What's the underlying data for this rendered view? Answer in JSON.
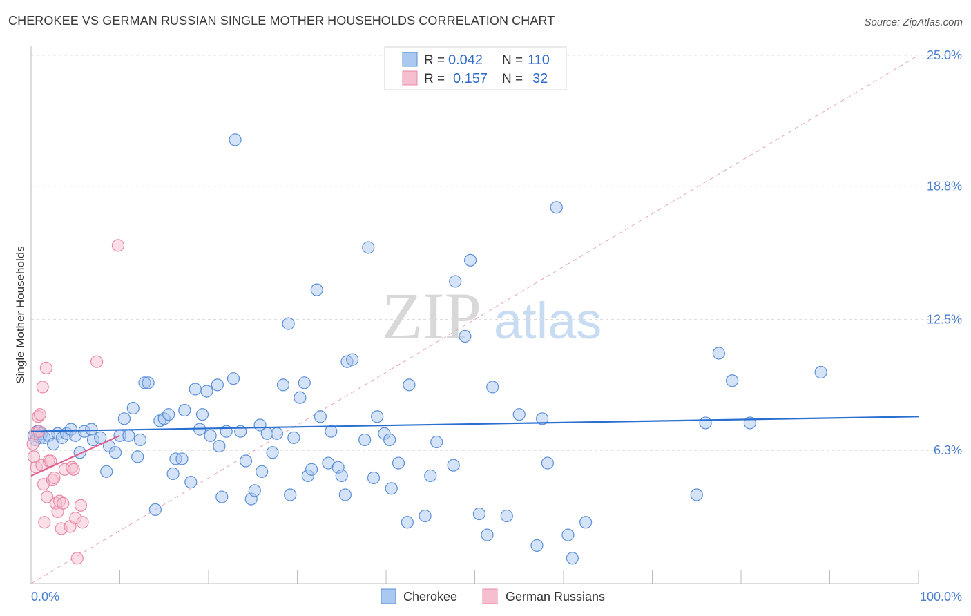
{
  "title": "CHEROKEE VS GERMAN RUSSIAN SINGLE MOTHER HOUSEHOLDS CORRELATION CHART",
  "source": "Source: ZipAtlas.com",
  "watermark": {
    "zip": "ZIP",
    "atlas": "atlas"
  },
  "colors": {
    "blue_fill": "#aac8f0",
    "blue_stroke": "#5b8fd8",
    "blue_line": "#2a6fd0",
    "pink_fill": "#f6bfd0",
    "pink_stroke": "#e889a8",
    "pink_line": "#e0608e",
    "grid": "#dcdcdc",
    "tick_text": "#4a7fd0"
  },
  "legend": {
    "rows": [
      {
        "r_label": "R =",
        "r_value": "0.042",
        "n_label": "N =",
        "n_value": "110",
        "series": "Cherokee"
      },
      {
        "r_label": "R =",
        "r_value": "0.157",
        "n_label": "N =",
        "n_value": "32",
        "series": "German Russians"
      }
    ]
  },
  "chart_data": {
    "type": "scatter",
    "title": "CHEROKEE VS GERMAN RUSSIAN SINGLE MOTHER HOUSEHOLDS CORRELATION CHART",
    "xlabel": "",
    "ylabel": "Single Mother Households",
    "xlim": [
      0,
      100
    ],
    "ylim": [
      0,
      25
    ],
    "x_tick_labels": [
      "0.0%",
      "100.0%"
    ],
    "y_ticks": [
      6.3,
      12.5,
      18.8,
      25.0
    ],
    "y_tick_labels": [
      "6.3%",
      "12.5%",
      "18.8%",
      "25.0%"
    ],
    "grid": true,
    "legend_position": "bottom",
    "series": [
      {
        "name": "Cherokee",
        "trend": {
          "x": [
            0,
            100
          ],
          "y": [
            7.2,
            7.9
          ]
        },
        "points": [
          [
            0.3,
            7.0
          ],
          [
            0.5,
            6.8
          ],
          [
            0.7,
            7.2
          ],
          [
            1.0,
            6.9
          ],
          [
            1.2,
            7.1
          ],
          [
            1.5,
            6.9
          ],
          [
            2.0,
            7.0
          ],
          [
            2.5,
            6.6
          ],
          [
            3.0,
            7.1
          ],
          [
            3.5,
            6.9
          ],
          [
            4.0,
            7.1
          ],
          [
            4.5,
            7.3
          ],
          [
            5.0,
            7.0
          ],
          [
            5.5,
            6.2
          ],
          [
            6.0,
            7.2
          ],
          [
            6.8,
            7.3
          ],
          [
            7.0,
            6.8
          ],
          [
            7.8,
            6.9
          ],
          [
            8.5,
            5.3
          ],
          [
            8.8,
            6.5
          ],
          [
            9.5,
            6.2
          ],
          [
            10.0,
            7.0
          ],
          [
            10.5,
            7.8
          ],
          [
            11.0,
            7.0
          ],
          [
            11.5,
            8.3
          ],
          [
            12.0,
            6.0
          ],
          [
            12.3,
            6.8
          ],
          [
            12.8,
            9.5
          ],
          [
            13.2,
            9.5
          ],
          [
            14.0,
            3.5
          ],
          [
            14.5,
            7.7
          ],
          [
            15.0,
            7.8
          ],
          [
            15.5,
            8.0
          ],
          [
            16.0,
            5.2
          ],
          [
            16.3,
            5.9
          ],
          [
            17.0,
            5.9
          ],
          [
            17.3,
            8.2
          ],
          [
            18.0,
            4.8
          ],
          [
            18.5,
            9.2
          ],
          [
            19.0,
            7.3
          ],
          [
            19.3,
            8.0
          ],
          [
            19.8,
            9.1
          ],
          [
            20.2,
            7.0
          ],
          [
            21.0,
            9.4
          ],
          [
            21.2,
            6.5
          ],
          [
            21.5,
            4.1
          ],
          [
            22.0,
            7.2
          ],
          [
            22.8,
            9.7
          ],
          [
            23.0,
            21.0
          ],
          [
            23.6,
            7.2
          ],
          [
            24.2,
            5.8
          ],
          [
            24.8,
            4.0
          ],
          [
            25.2,
            4.4
          ],
          [
            25.8,
            7.5
          ],
          [
            26.0,
            5.3
          ],
          [
            26.6,
            7.1
          ],
          [
            27.2,
            6.2
          ],
          [
            27.7,
            7.1
          ],
          [
            28.4,
            9.4
          ],
          [
            29.0,
            12.3
          ],
          [
            29.2,
            4.2
          ],
          [
            29.6,
            6.9
          ],
          [
            30.3,
            8.8
          ],
          [
            30.8,
            9.5
          ],
          [
            31.2,
            5.1
          ],
          [
            31.6,
            5.4
          ],
          [
            32.2,
            13.9
          ],
          [
            32.6,
            7.9
          ],
          [
            33.5,
            5.7
          ],
          [
            33.8,
            7.2
          ],
          [
            34.6,
            5.5
          ],
          [
            35.0,
            5.1
          ],
          [
            35.4,
            4.2
          ],
          [
            35.6,
            10.5
          ],
          [
            36.2,
            10.6
          ],
          [
            37.6,
            6.8
          ],
          [
            38.0,
            15.9
          ],
          [
            38.6,
            5.0
          ],
          [
            39.0,
            7.9
          ],
          [
            39.8,
            7.1
          ],
          [
            40.4,
            6.8
          ],
          [
            40.6,
            4.5
          ],
          [
            41.4,
            5.7
          ],
          [
            42.4,
            2.9
          ],
          [
            42.6,
            9.4
          ],
          [
            44.4,
            3.2
          ],
          [
            45.0,
            5.1
          ],
          [
            45.7,
            6.7
          ],
          [
            47.6,
            5.6
          ],
          [
            47.8,
            14.3
          ],
          [
            48.9,
            11.7
          ],
          [
            49.5,
            15.3
          ],
          [
            50.5,
            3.3
          ],
          [
            51.4,
            2.3
          ],
          [
            52.0,
            9.3
          ],
          [
            53.6,
            3.2
          ],
          [
            55.0,
            8.0
          ],
          [
            57.0,
            1.8
          ],
          [
            57.6,
            7.8
          ],
          [
            58.2,
            5.7
          ],
          [
            59.2,
            17.8
          ],
          [
            60.5,
            2.3
          ],
          [
            61.0,
            1.2
          ],
          [
            62.5,
            2.9
          ],
          [
            75.0,
            4.2
          ],
          [
            76.0,
            7.6
          ],
          [
            77.5,
            10.9
          ],
          [
            79.0,
            9.6
          ],
          [
            81.0,
            7.6
          ],
          [
            89.0,
            10.0
          ]
        ]
      },
      {
        "name": "German Russians",
        "trend": {
          "x": [
            0,
            10
          ],
          "y": [
            5.1,
            7.0
          ]
        },
        "points": [
          [
            0.2,
            6.6
          ],
          [
            0.3,
            6.0
          ],
          [
            0.5,
            7.1
          ],
          [
            0.6,
            5.5
          ],
          [
            0.8,
            7.9
          ],
          [
            1.0,
            8.0
          ],
          [
            1.2,
            5.6
          ],
          [
            1.3,
            9.3
          ],
          [
            1.4,
            4.7
          ],
          [
            1.5,
            2.9
          ],
          [
            1.7,
            10.2
          ],
          [
            1.8,
            4.1
          ],
          [
            2.0,
            5.8
          ],
          [
            2.2,
            5.8
          ],
          [
            2.4,
            4.9
          ],
          [
            2.6,
            5.0
          ],
          [
            2.8,
            3.8
          ],
          [
            3.0,
            3.4
          ],
          [
            3.2,
            3.9
          ],
          [
            3.4,
            2.6
          ],
          [
            3.6,
            3.8
          ],
          [
            3.8,
            5.4
          ],
          [
            4.4,
            2.7
          ],
          [
            4.6,
            5.5
          ],
          [
            4.8,
            5.4
          ],
          [
            5.0,
            3.1
          ],
          [
            5.2,
            1.2
          ],
          [
            5.6,
            3.7
          ],
          [
            5.8,
            2.9
          ],
          [
            7.4,
            10.5
          ],
          [
            9.8,
            16.0
          ],
          [
            0.9,
            7.2
          ]
        ]
      }
    ]
  }
}
